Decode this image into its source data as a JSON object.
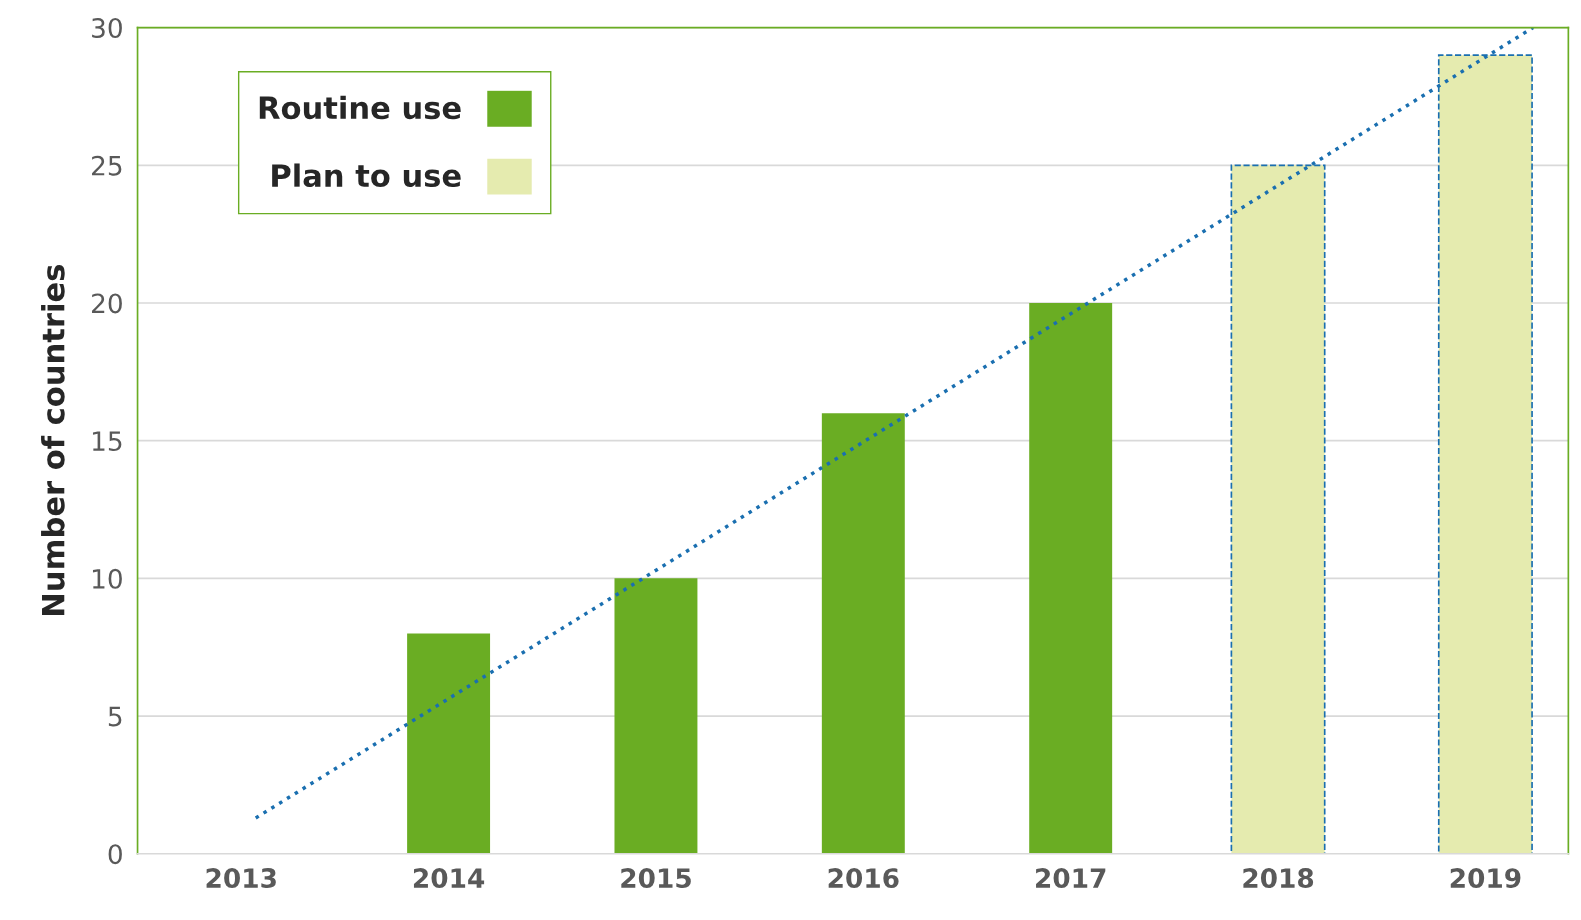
{
  "chart_data": {
    "type": "bar",
    "ylabel": "Number of countries",
    "xlim": [
      2012.5,
      2019.4
    ],
    "xticks": [
      2013,
      2014,
      2015,
      2016,
      2017,
      2018,
      2019
    ],
    "ylim": [
      0,
      30
    ],
    "yticks": [
      0,
      5,
      10,
      15,
      20,
      25,
      30
    ],
    "grid": "y",
    "legend": "top left",
    "series": [
      {
        "name": "Routine use",
        "color": "#6aad23",
        "x": [
          2014,
          2015,
          2016,
          2017
        ],
        "values": [
          8,
          10,
          16,
          20
        ]
      },
      {
        "name": "Plan to use",
        "color": "#e5ebaf",
        "x": [
          2018,
          2019
        ],
        "values": [
          25,
          29
        ],
        "line_style": "dashed"
      },
      {
        "type": "line",
        "color": "#1a6fb0",
        "x": [
          2013.07,
          2019.23
        ],
        "values": [
          1.3,
          30
        ],
        "line_style": "dotted",
        "marker": "none"
      }
    ]
  }
}
